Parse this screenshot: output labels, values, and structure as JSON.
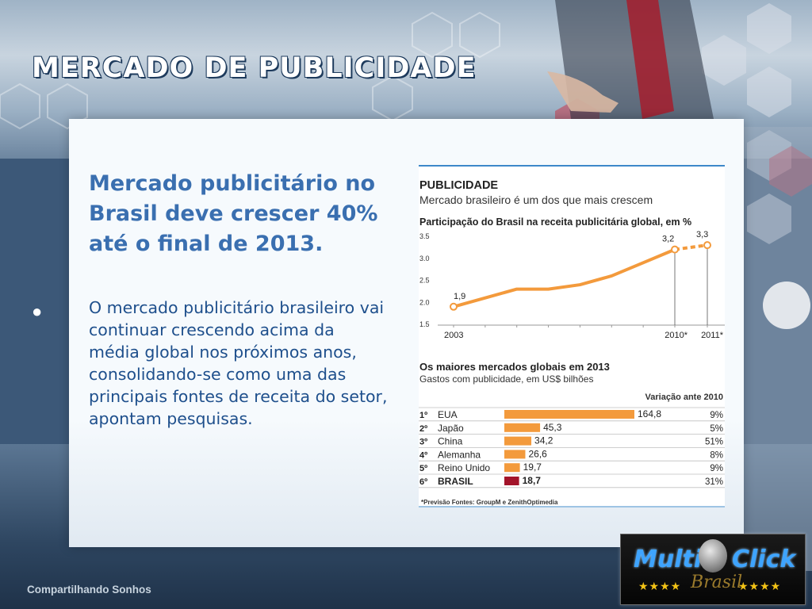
{
  "slide": {
    "title": "MERCADO DE PUBLICIDADE",
    "headline": "Mercado publicitário no Brasil deve crescer 40% até o final de 2013.",
    "body": "O mercado publicitário brasileiro vai continuar crescendo acima da média global nos próximos anos, consolidando-se como uma das principais fontes de receita do setor, apontam pesquisas.",
    "footer": "Compartilhando Sonhos"
  },
  "logo": {
    "text_left": "Multi",
    "text_right": "Click",
    "subtext": "Brasil",
    "stars_left": "★★★★",
    "stars_right": "★★★★"
  },
  "colors": {
    "orange": "#f39a3c",
    "dark_red": "#a3142a",
    "title_blue": "#3a6fb0",
    "body_blue": "#1e4f8c",
    "chart_rule": "#3d88c9"
  },
  "figure": {
    "header": "PUBLICIDADE",
    "subheader": "Mercado brasileiro é um dos que mais crescem",
    "note": "*Previsão   Fontes: GroupM e ZenithOptimedia"
  },
  "chart_data": [
    {
      "type": "line",
      "title": "Participação do Brasil na receita publicitária global, em %",
      "x": [
        "2003",
        "2004",
        "2005",
        "2006",
        "2007",
        "2008",
        "2009",
        "2010*",
        "2011*"
      ],
      "x_tick_labels": [
        "2003",
        "2010*",
        "2011*"
      ],
      "values": [
        1.9,
        2.1,
        2.3,
        2.3,
        2.4,
        2.6,
        2.9,
        3.2,
        3.3
      ],
      "point_labels": {
        "0": "1,9",
        "7": "3,2",
        "8": "3,3"
      },
      "projected_from_index": 7,
      "y_ticks": [
        "1.5",
        "2.0",
        "2.5",
        "3.0",
        "3.5"
      ],
      "ylim": [
        1.5,
        3.5
      ],
      "grid": false
    },
    {
      "type": "bar",
      "title": "Os maiores mercados globais em 2013",
      "subtitle": "Gastos com publicidade, em US$ bilhões",
      "change_header": "Variação ante 2010",
      "ranks": [
        "1º",
        "2º",
        "3º",
        "4º",
        "5º",
        "6º"
      ],
      "categories": [
        "EUA",
        "Japão",
        "China",
        "Alemanha",
        "Reino Unido",
        "BRASIL"
      ],
      "values": [
        164.8,
        45.3,
        34.2,
        26.6,
        19.7,
        18.7
      ],
      "value_labels": [
        "164,8",
        "45,3",
        "34,2",
        "26,6",
        "19,7",
        "18,7"
      ],
      "change": [
        "9%",
        "5%",
        "51%",
        "8%",
        "9%",
        "31%"
      ],
      "highlight_index": 5,
      "orientation": "horizontal"
    }
  ]
}
